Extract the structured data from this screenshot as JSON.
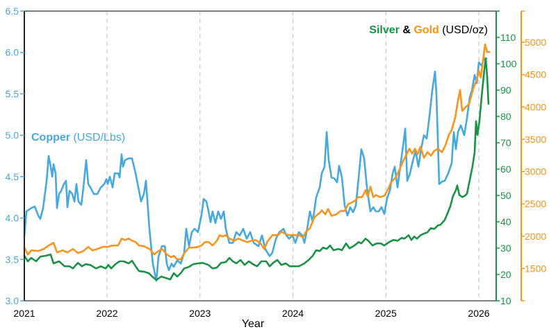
{
  "chart_data": {
    "type": "line",
    "title": "",
    "xlabel": "Year",
    "x_ticks": [
      {
        "value": 2021.11,
        "label": "2021"
      },
      {
        "value": 2022,
        "label": "2022"
      },
      {
        "value": 2023,
        "label": "2023"
      },
      {
        "value": 2024,
        "label": "2024"
      },
      {
        "value": 2025,
        "label": "2025"
      },
      {
        "value": 2026,
        "label": "2026"
      }
    ],
    "xlim": [
      2021.11,
      2026.15
    ],
    "grid": "vertical dashed at year ticks",
    "axes": {
      "copper": {
        "position": "left",
        "ylim": [
          3.0,
          6.5
        ],
        "ticks": [
          {
            "value": 3.0,
            "label": "3.0"
          },
          {
            "value": 3.5,
            "label": "3.5"
          },
          {
            "value": 4.0,
            "label": "4.0"
          },
          {
            "value": 4.5,
            "label": "4.5"
          },
          {
            "value": 5.0,
            "label": "5.0"
          },
          {
            "value": 5.5,
            "label": "5.5"
          },
          {
            "value": 6.0,
            "label": "6.0"
          },
          {
            "value": 6.5,
            "label": "6.5"
          }
        ],
        "color": "#46a9de"
      },
      "silver": {
        "position": "right-inner",
        "ylim": [
          10,
          110
        ],
        "ticks": [
          {
            "value": 10,
            "label": "10"
          },
          {
            "value": 20,
            "label": "20"
          },
          {
            "value": 30,
            "label": "30"
          },
          {
            "value": 40,
            "label": "40"
          },
          {
            "value": 50,
            "label": "50"
          },
          {
            "value": 60,
            "label": "60"
          },
          {
            "value": 70,
            "label": "70"
          },
          {
            "value": 80,
            "label": "80"
          },
          {
            "value": 90,
            "label": "90"
          },
          {
            "value": 100,
            "label": "100"
          },
          {
            "value": 110,
            "label": "110"
          }
        ],
        "color": "#1a9246"
      },
      "gold": {
        "position": "right-outer",
        "ylim": [
          1000,
          5000
        ],
        "ticks": [
          {
            "value": 1000,
            "label": ""
          },
          {
            "value": 1500,
            "label": "1500"
          },
          {
            "value": 2000,
            "label": "2000"
          },
          {
            "value": 2500,
            "label": "2500"
          },
          {
            "value": 3000,
            "label": "3000"
          },
          {
            "value": 3500,
            "label": "3500"
          },
          {
            "value": 4000,
            "label": "4000"
          },
          {
            "value": 4500,
            "label": "4500"
          },
          {
            "value": 5000,
            "label": "5000"
          }
        ],
        "color": "#f7941d"
      }
    },
    "legend": {
      "copper": {
        "name": "Copper",
        "unit": " (USD/Lbs)",
        "placement": "left-middle"
      },
      "silver_gold": {
        "silver": "Silver",
        "amp": " & ",
        "gold": "Gold",
        "unit": " (USD/oz)",
        "placement": "top-right"
      }
    },
    "series": [
      {
        "name": "Copper",
        "axis": "copper",
        "color": "#46a9de",
        "x": [
          2021.11,
          2021.133,
          2021.185,
          2021.222,
          2021.26,
          2021.282,
          2021.312,
          2021.35,
          2021.372,
          2021.394,
          2021.41,
          2021.424,
          2021.447,
          2021.462,
          2021.484,
          2021.507,
          2021.536,
          2021.559,
          2021.574,
          2021.596,
          2021.626,
          2021.649,
          2021.671,
          2021.693,
          2021.723,
          2021.746,
          2021.776,
          2021.798,
          2021.821,
          2021.858,
          2021.895,
          2021.933,
          2021.97,
          2021.993,
          2022.007,
          2022.03,
          2022.06,
          2022.082,
          2022.12,
          2022.135,
          2022.157,
          2022.172,
          2022.194,
          2022.232,
          2022.269,
          2022.307,
          2022.344,
          2022.366,
          2022.396,
          2022.419,
          2022.456,
          2022.493,
          2022.531,
          2022.553,
          2022.591,
          2022.621,
          2022.643,
          2022.665,
          2022.695,
          2022.718,
          2022.755,
          2022.793,
          2022.83,
          2022.852,
          2022.882,
          2022.912,
          2022.942,
          2022.979,
          2023.017,
          2023.039,
          2023.069,
          2023.092,
          2023.114,
          2023.136,
          2023.166,
          2023.196,
          2023.226,
          2023.256,
          2023.278,
          2023.316,
          2023.353,
          2023.391,
          2023.428,
          2023.465,
          2023.503,
          2023.54,
          2023.578,
          2023.63,
          2023.667,
          2023.705,
          2023.75,
          2023.779,
          2023.817,
          2023.854,
          2023.899,
          2023.929,
          2023.959,
          2023.996,
          2024.026,
          2024.064,
          2024.101,
          2024.123,
          2024.153,
          2024.183,
          2024.213,
          2024.25,
          2024.288,
          2024.31,
          2024.34,
          2024.363,
          2024.385,
          2024.415,
          2024.445,
          2024.475,
          2024.497,
          2024.527,
          2024.557,
          2024.587,
          2024.617,
          2024.647,
          2024.677,
          2024.707,
          2024.736,
          2024.766,
          2024.796,
          2024.834,
          2024.864,
          2024.893,
          2024.923,
          2024.953,
          2024.983,
          2025.013,
          2025.043,
          2025.073,
          2025.095,
          2025.125,
          2025.148,
          2025.185,
          2025.208,
          2025.23,
          2025.26,
          2025.29,
          2025.32,
          2025.35,
          2025.379,
          2025.409,
          2025.439,
          2025.469,
          2025.499,
          2025.529,
          2025.544,
          2025.574,
          2025.604,
          2025.634,
          2025.671,
          2025.708,
          2025.731,
          2025.753,
          2025.776,
          2025.806,
          2025.843,
          2025.873,
          2025.903,
          2025.925,
          2025.955,
          2025.978,
          2026.0,
          2026.03,
          2026.06,
          2026.082
        ],
        "values": [
          3.78,
          4.08,
          4.12,
          4.14,
          4.03,
          3.99,
          4.12,
          4.45,
          4.75,
          4.62,
          4.5,
          4.65,
          4.54,
          4.12,
          4.29,
          4.33,
          4.41,
          4.45,
          4.13,
          4.33,
          4.29,
          4.2,
          4.41,
          4.2,
          4.16,
          4.37,
          4.7,
          4.41,
          4.37,
          4.29,
          4.29,
          4.37,
          4.41,
          4.47,
          4.41,
          4.5,
          4.37,
          4.54,
          4.54,
          4.49,
          4.77,
          4.62,
          4.7,
          4.72,
          4.72,
          4.54,
          4.33,
          4.2,
          4.29,
          4.45,
          3.87,
          3.45,
          3.24,
          3.53,
          3.66,
          3.66,
          3.45,
          3.37,
          3.45,
          3.41,
          3.49,
          3.45,
          3.58,
          3.87,
          3.66,
          3.83,
          3.87,
          3.83,
          4.04,
          4.23,
          4.2,
          4.08,
          3.95,
          4.08,
          3.94,
          4.08,
          3.99,
          4.08,
          3.87,
          3.7,
          3.7,
          3.83,
          3.79,
          3.87,
          3.75,
          3.83,
          3.7,
          3.66,
          3.79,
          3.62,
          3.54,
          3.58,
          3.75,
          3.83,
          3.87,
          3.79,
          3.75,
          3.79,
          3.7,
          3.83,
          3.79,
          3.7,
          3.87,
          4.08,
          3.95,
          4.25,
          4.37,
          4.54,
          4.62,
          5.04,
          4.7,
          4.49,
          4.48,
          4.43,
          4.63,
          4.49,
          4.15,
          4.03,
          4.13,
          4.07,
          4.15,
          4.49,
          4.83,
          4.72,
          4.37,
          4.08,
          4.13,
          4.08,
          4.08,
          4.13,
          4.05,
          4.24,
          4.33,
          4.54,
          4.62,
          4.37,
          4.56,
          4.87,
          5.08,
          4.45,
          4.54,
          4.69,
          4.81,
          4.62,
          4.83,
          5.0,
          4.96,
          5.23,
          5.54,
          5.77,
          5.5,
          4.41,
          4.44,
          4.45,
          4.54,
          4.66,
          5.04,
          4.83,
          5.04,
          5.12,
          5.0,
          5.21,
          5.46,
          5.54,
          5.73,
          5.63,
          5.88,
          5.84,
          5.93,
          5.93
        ]
      },
      {
        "name": "Gold",
        "axis": "gold",
        "color": "#f7941d",
        "x": [
          2021.11,
          2021.148,
          2021.185,
          2021.26,
          2021.32,
          2021.372,
          2021.424,
          2021.462,
          2021.522,
          2021.574,
          2021.634,
          2021.686,
          2021.746,
          2021.798,
          2021.843,
          2021.895,
          2021.955,
          2022.007,
          2022.06,
          2022.12,
          2022.157,
          2022.194,
          2022.232,
          2022.269,
          2022.307,
          2022.344,
          2022.396,
          2022.456,
          2022.508,
          2022.553,
          2022.591,
          2022.643,
          2022.688,
          2022.718,
          2022.755,
          2022.793,
          2022.837,
          2022.882,
          2022.942,
          2022.979,
          2023.017,
          2023.054,
          2023.092,
          2023.136,
          2023.181,
          2023.211,
          2023.241,
          2023.278,
          2023.316,
          2023.368,
          2023.413,
          2023.465,
          2023.51,
          2023.555,
          2023.6,
          2023.652,
          2023.69,
          2023.727,
          2023.779,
          2023.839,
          2023.877,
          2023.914,
          2023.959,
          2023.996,
          2024.064,
          2024.108,
          2024.146,
          2024.183,
          2024.228,
          2024.265,
          2024.288,
          2024.31,
          2024.348,
          2024.378,
          2024.415,
          2024.467,
          2024.512,
          2024.557,
          2024.594,
          2024.632,
          2024.669,
          2024.699,
          2024.744,
          2024.781,
          2024.804,
          2024.834,
          2024.864,
          2024.893,
          2024.938,
          2024.983,
          2025.02,
          2025.058,
          2025.103,
          2025.148,
          2025.178,
          2025.215,
          2025.253,
          2025.283,
          2025.312,
          2025.342,
          2025.372,
          2025.409,
          2025.447,
          2025.484,
          2025.521,
          2025.559,
          2025.604,
          2025.641,
          2025.678,
          2025.708,
          2025.746,
          2025.776,
          2025.798,
          2025.821,
          2025.858,
          2025.895,
          2025.925,
          2025.948,
          2025.978,
          2026.0,
          2026.022,
          2026.052,
          2026.067,
          2026.09,
          2026.112
        ],
        "values": [
          1824,
          1717,
          1781,
          1770,
          1802,
          1856,
          1898,
          1749,
          1781,
          1749,
          1802,
          1738,
          1770,
          1834,
          1781,
          1802,
          1834,
          1834,
          1856,
          1856,
          1963,
          1941,
          1963,
          1930,
          1909,
          1856,
          1845,
          1802,
          1717,
          1770,
          1802,
          1717,
          1674,
          1695,
          1642,
          1642,
          1749,
          1824,
          1824,
          1834,
          1856,
          1909,
          1909,
          1856,
          1930,
          2016,
          1995,
          2016,
          1963,
          1930,
          1963,
          1930,
          1909,
          1930,
          1941,
          1888,
          1802,
          1920,
          2016,
          2016,
          2070,
          2037,
          2016,
          2016,
          2016,
          1984,
          2080,
          2123,
          2283,
          2337,
          2358,
          2401,
          2337,
          2422,
          2315,
          2337,
          2390,
          2390,
          2497,
          2519,
          2551,
          2604,
          2604,
          2711,
          2615,
          2765,
          2604,
          2636,
          2604,
          2626,
          2711,
          2840,
          2904,
          3032,
          3139,
          3246,
          3353,
          3278,
          3353,
          3267,
          3385,
          3214,
          3299,
          3246,
          3321,
          3353,
          3299,
          3406,
          3567,
          3642,
          3834,
          4102,
          4262,
          3941,
          3995,
          4048,
          4209,
          4315,
          4422,
          4561,
          4454,
          4797,
          4968,
          4850,
          4850
        ]
      },
      {
        "name": "Silver",
        "axis": "silver",
        "color": "#1a9246",
        "x": [
          2021.11,
          2021.148,
          2021.185,
          2021.237,
          2021.282,
          2021.342,
          2021.394,
          2021.424,
          2021.484,
          2021.544,
          2021.596,
          2021.634,
          2021.686,
          2021.731,
          2021.768,
          2021.821,
          2021.88,
          2021.933,
          2021.985,
          2022.015,
          2022.045,
          2022.09,
          2022.135,
          2022.179,
          2022.232,
          2022.269,
          2022.307,
          2022.344,
          2022.404,
          2022.449,
          2022.486,
          2022.531,
          2022.583,
          2022.628,
          2022.68,
          2022.718,
          2022.755,
          2022.793,
          2022.83,
          2022.882,
          2022.927,
          2022.979,
          2023.031,
          2023.092,
          2023.136,
          2023.181,
          2023.226,
          2023.278,
          2023.316,
          2023.353,
          2023.391,
          2023.436,
          2023.48,
          2023.525,
          2023.57,
          2023.615,
          2023.66,
          2023.712,
          2023.75,
          2023.787,
          2023.832,
          2023.877,
          2023.922,
          2023.966,
          2023.996,
          2024.064,
          2024.123,
          2024.168,
          2024.213,
          2024.25,
          2024.288,
          2024.325,
          2024.363,
          2024.4,
          2024.437,
          2024.49,
          2024.527,
          2024.572,
          2024.609,
          2024.662,
          2024.707,
          2024.736,
          2024.781,
          2024.811,
          2024.856,
          2024.901,
          2024.946,
          2024.983,
          2025.035,
          2025.08,
          2025.125,
          2025.17,
          2025.2,
          2025.245,
          2025.275,
          2025.305,
          2025.335,
          2025.372,
          2025.409,
          2025.447,
          2025.484,
          2025.521,
          2025.559,
          2025.589,
          2025.634,
          2025.664,
          2025.694,
          2025.723,
          2025.753,
          2025.768,
          2025.79,
          2025.821,
          2025.851,
          2025.873,
          2025.903,
          2025.933,
          2025.955,
          2025.97,
          2025.985,
          2026.007,
          2026.03,
          2026.06,
          2026.075,
          2026.09,
          2026.104
        ],
        "values": [
          27.1,
          25.0,
          26.3,
          25.0,
          26.8,
          27.1,
          27.6,
          24.2,
          25.0,
          23.1,
          23.1,
          22.3,
          24.4,
          23.1,
          23.9,
          23.6,
          22.3,
          23.1,
          22.3,
          23.6,
          22.3,
          23.9,
          25.0,
          25.0,
          24.2,
          25.2,
          23.1,
          21.3,
          21.0,
          20.5,
          19.2,
          17.9,
          19.2,
          18.7,
          18.1,
          20.5,
          19.2,
          20.5,
          22.3,
          22.9,
          23.9,
          24.2,
          24.4,
          23.6,
          22.3,
          22.6,
          24.4,
          24.7,
          26.3,
          25.0,
          24.2,
          25.5,
          23.6,
          25.0,
          23.9,
          23.1,
          25.0,
          25.0,
          23.1,
          24.4,
          25.5,
          23.6,
          24.2,
          23.1,
          23.1,
          23.1,
          24.2,
          25.5,
          27.1,
          29.2,
          28.9,
          30.2,
          29.7,
          31.0,
          29.2,
          29.7,
          29.2,
          31.8,
          29.9,
          31.0,
          32.3,
          31.8,
          33.6,
          32.8,
          31.0,
          31.8,
          31.8,
          31.0,
          32.3,
          33.1,
          32.8,
          33.9,
          33.6,
          34.9,
          33.1,
          34.4,
          33.6,
          34.9,
          35.5,
          36.0,
          37.6,
          37.3,
          38.6,
          38.9,
          40.7,
          43.3,
          46.0,
          49.9,
          52.0,
          53.8,
          50.2,
          49.4,
          49.9,
          50.7,
          55.9,
          61.2,
          66.4,
          78.2,
          73.0,
          78.2,
          87.4,
          97.9,
          101.9,
          95.3,
          84.8
        ]
      }
    ]
  }
}
